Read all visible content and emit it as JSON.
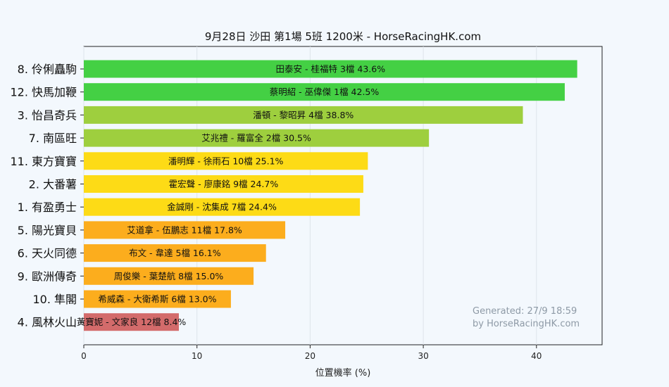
{
  "chart_data": {
    "type": "bar",
    "orientation": "horizontal",
    "title": "9月28日  沙田  第1場  5班  1200米 - HorseRacingHK.com",
    "xlabel": "位置機率 (%)",
    "xlim": [
      0,
      45.8
    ],
    "xticks": [
      "0",
      "10",
      "20",
      "30",
      "40"
    ],
    "grid": "vertical",
    "categories": [
      "8. 伶俐矗駒",
      "12. 快馬加鞭",
      "3. 怡昌奇兵",
      "7. 南區旺",
      "11. 東方寶寶",
      "2. 大番薯",
      "1. 有盈勇士",
      "5. 陽光寶貝",
      "6. 天火同德",
      "9. 歐洲傳奇",
      "10. 隼閣",
      "4. 風林火山"
    ],
    "values": [
      43.6,
      42.5,
      38.8,
      30.5,
      25.1,
      24.7,
      24.4,
      17.8,
      16.1,
      15.0,
      13.0,
      8.4
    ],
    "bar_labels": [
      "田泰安 - 桂福特 3檔  43.6%",
      "蔡明紹 - 巫偉傑 1檔  42.5%",
      "潘頓 - 黎昭昇 4檔  38.8%",
      "艾兆禮 - 羅富全 2檔  30.5%",
      "潘明輝 - 徐雨石 10檔  25.1%",
      "霍宏聲 - 廖康銘 9檔  24.7%",
      "金誠剛 - 沈集成 7檔  24.4%",
      "艾道拿 - 伍鵬志 11檔  17.8%",
      "布文 - 韋達 5檔  16.1%",
      "周俊樂 - 葉楚航 8檔  15.0%",
      "希威森 - 大衛希斯 6檔  13.0%",
      "黃寶妮 - 文家良 12檔  8.4%"
    ],
    "colors": [
      "#44d044",
      "#44d044",
      "#9ecf3e",
      "#9ecf3e",
      "#fddb16",
      "#fddb16",
      "#fddb16",
      "#fcad1d",
      "#fcad1d",
      "#fcad1d",
      "#fcad1d",
      "#d36b6b"
    ],
    "annotations": [
      "Generated: 27/9 18:59",
      "by HorseRacingHK.com"
    ]
  }
}
